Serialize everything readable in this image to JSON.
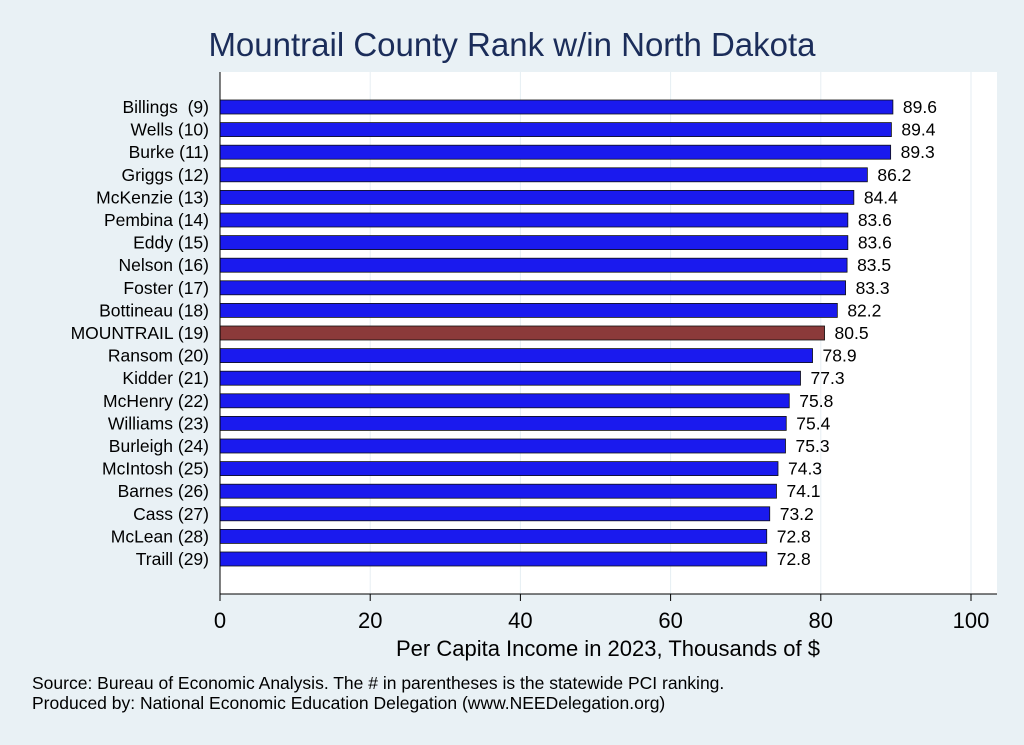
{
  "chart_data": {
    "type": "bar",
    "orientation": "horizontal",
    "title": "Mountrail County Rank w/in North Dakota",
    "xlabel": "Per Capita Income in 2023, Thousands of $",
    "ylabel": "",
    "xlim": [
      0,
      100
    ],
    "xticks": [
      0,
      20,
      40,
      60,
      80,
      100
    ],
    "grid": "vertical",
    "categories": [
      "Billings  (9)",
      "Wells (10)",
      "Burke (11)",
      "Griggs (12)",
      "McKenzie (13)",
      "Pembina (14)",
      "Eddy (15)",
      "Nelson (16)",
      "Foster (17)",
      "Bottineau (18)",
      "MOUNTRAIL (19)",
      "Ransom (20)",
      "Kidder (21)",
      "McHenry (22)",
      "Williams (23)",
      "Burleigh (24)",
      "McIntosh (25)",
      "Barnes (26)",
      "Cass (27)",
      "McLean (28)",
      "Traill (29)"
    ],
    "values": [
      89.6,
      89.4,
      89.3,
      86.2,
      84.4,
      83.6,
      83.6,
      83.5,
      83.3,
      82.2,
      80.5,
      78.9,
      77.3,
      75.8,
      75.4,
      75.3,
      74.3,
      74.1,
      73.2,
      72.8,
      72.8
    ],
    "value_labels": [
      "89.6",
      "89.4",
      "89.3",
      "86.2",
      "84.4",
      "83.6",
      "83.6",
      "83.5",
      "83.3",
      "82.2",
      "80.5",
      "78.9",
      "77.3",
      "75.8",
      "75.4",
      "75.3",
      "74.3",
      "74.1",
      "73.2",
      "72.8",
      "72.8"
    ],
    "highlight_index": 10,
    "colors": {
      "bar": "#1a1aee",
      "highlight": "#8b3a3a",
      "title": "#1b2d5a",
      "background": "#e9f1f5",
      "plot_background": "#ffffff",
      "grid": "#e6eef3"
    }
  },
  "notes": {
    "source": "Source: Bureau of Economic Analysis. The # in parentheses is the statewide PCI ranking.",
    "producer": "Produced by: National Economic Education Delegation (www.NEEDelegation.org)"
  }
}
